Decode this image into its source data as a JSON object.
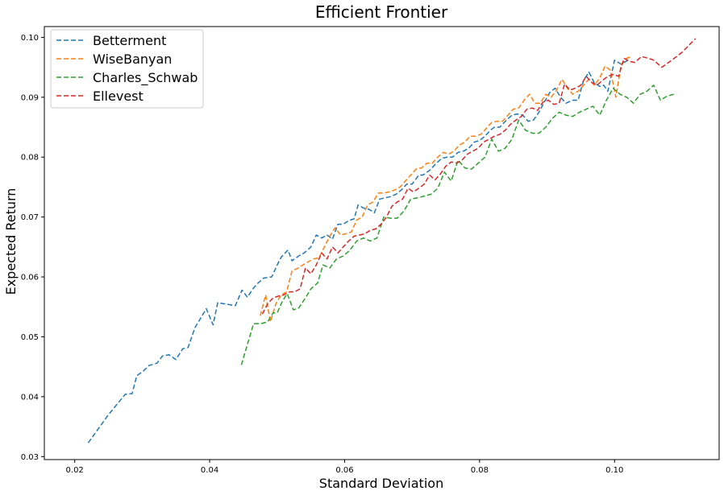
{
  "chart_data": {
    "type": "line",
    "title": "Efficient Frontier",
    "xlabel": "Standard Deviation",
    "ylabel": "Expected Return",
    "xlim": [
      0.0155,
      0.1155
    ],
    "ylim": [
      0.0295,
      0.1018
    ],
    "xticks": [
      0.02,
      0.04,
      0.06,
      0.08,
      0.1
    ],
    "xtick_labels": [
      "0.02",
      "0.04",
      "0.06",
      "0.08",
      "0.10"
    ],
    "yticks": [
      0.03,
      0.04,
      0.05,
      0.06,
      0.07,
      0.08,
      0.09,
      0.1
    ],
    "ytick_labels": [
      "0.03",
      "0.04",
      "0.05",
      "0.06",
      "0.07",
      "0.08",
      "0.09",
      "0.10"
    ],
    "grid": false,
    "line_style": "dashed",
    "legend_position": "upper-left",
    "series": [
      {
        "name": "Betterment",
        "color": "#1f77b4",
        "x": [
          0.022,
          0.025,
          0.0275,
          0.0285,
          0.0292,
          0.0302,
          0.031,
          0.0322,
          0.033,
          0.034,
          0.035,
          0.036,
          0.0368,
          0.0378,
          0.0385,
          0.0395,
          0.0405,
          0.0412,
          0.0422,
          0.0438,
          0.0448,
          0.0456,
          0.0464,
          0.0472,
          0.048,
          0.0492,
          0.05,
          0.0506,
          0.0516,
          0.0522,
          0.0532,
          0.054,
          0.055,
          0.0558,
          0.0566,
          0.0574,
          0.0582,
          0.059,
          0.0598,
          0.0606,
          0.0614,
          0.062,
          0.0628,
          0.0636,
          0.0644,
          0.0652,
          0.066,
          0.0668,
          0.0676,
          0.0684,
          0.0692,
          0.07,
          0.071,
          0.0716,
          0.0726,
          0.0736,
          0.0744,
          0.0752,
          0.076,
          0.0768,
          0.0776,
          0.0784,
          0.0792,
          0.08,
          0.0808,
          0.0816,
          0.0822,
          0.083,
          0.084,
          0.0848,
          0.0856,
          0.0864,
          0.0872,
          0.088,
          0.0888,
          0.0896,
          0.0904,
          0.0912,
          0.092,
          0.0928,
          0.0938,
          0.0946,
          0.0954,
          0.0962,
          0.097,
          0.0978,
          0.0984,
          0.099,
          0.1,
          0.101,
          0.102
        ],
        "values": [
          0.0323,
          0.037,
          0.0404,
          0.0405,
          0.0435,
          0.0443,
          0.0452,
          0.0456,
          0.0468,
          0.047,
          0.0462,
          0.048,
          0.0482,
          0.0515,
          0.0528,
          0.0547,
          0.052,
          0.0557,
          0.0555,
          0.0552,
          0.0578,
          0.0566,
          0.058,
          0.059,
          0.0598,
          0.06,
          0.062,
          0.0633,
          0.0645,
          0.0627,
          0.0635,
          0.064,
          0.065,
          0.067,
          0.0665,
          0.067,
          0.0663,
          0.0688,
          0.0688,
          0.0694,
          0.0697,
          0.072,
          0.0715,
          0.0713,
          0.0707,
          0.073,
          0.0732,
          0.0734,
          0.0738,
          0.0745,
          0.0755,
          0.0755,
          0.077,
          0.077,
          0.0778,
          0.079,
          0.0798,
          0.08,
          0.08,
          0.0808,
          0.081,
          0.0815,
          0.0825,
          0.0828,
          0.0835,
          0.0845,
          0.085,
          0.085,
          0.0862,
          0.087,
          0.0872,
          0.087,
          0.086,
          0.0862,
          0.0875,
          0.0892,
          0.0908,
          0.0915,
          0.09,
          0.089,
          0.0895,
          0.0895,
          0.0928,
          0.0942,
          0.0924,
          0.0918,
          0.092,
          0.091,
          0.0962,
          0.0955,
          0.0962
        ]
      },
      {
        "name": "WiseBanyan",
        "color": "#ff7f0e",
        "x": [
          0.0475,
          0.0483,
          0.049,
          0.0498,
          0.0506,
          0.0514,
          0.0522,
          0.053,
          0.0538,
          0.0546,
          0.0554,
          0.0562,
          0.057,
          0.0578,
          0.0586,
          0.0594,
          0.0602,
          0.061,
          0.0618,
          0.0626,
          0.0634,
          0.0642,
          0.065,
          0.0658,
          0.0666,
          0.0674,
          0.0682,
          0.069,
          0.0698,
          0.0706,
          0.0714,
          0.0722,
          0.073,
          0.0738,
          0.0746,
          0.0754,
          0.0762,
          0.077,
          0.0778,
          0.0786,
          0.0794,
          0.0802,
          0.081,
          0.0818,
          0.0826,
          0.0834,
          0.0842,
          0.085,
          0.0858,
          0.0866,
          0.0874,
          0.0882,
          0.089,
          0.0898,
          0.0906,
          0.0914,
          0.0922,
          0.093,
          0.0938,
          0.0946,
          0.0954,
          0.0962,
          0.097,
          0.0978,
          0.0986,
          0.0994,
          0.1002,
          0.101,
          0.1018,
          0.1026
        ],
        "values": [
          0.0535,
          0.057,
          0.0525,
          0.0555,
          0.057,
          0.0575,
          0.061,
          0.0614,
          0.062,
          0.0625,
          0.063,
          0.0632,
          0.065,
          0.0668,
          0.0682,
          0.067,
          0.0672,
          0.0675,
          0.0695,
          0.07,
          0.072,
          0.0725,
          0.074,
          0.074,
          0.0742,
          0.0745,
          0.075,
          0.076,
          0.077,
          0.078,
          0.0782,
          0.079,
          0.079,
          0.08,
          0.0808,
          0.0805,
          0.081,
          0.082,
          0.0825,
          0.0835,
          0.0835,
          0.0838,
          0.0848,
          0.0858,
          0.086,
          0.086,
          0.087,
          0.088,
          0.0882,
          0.0895,
          0.0905,
          0.089,
          0.089,
          0.0905,
          0.09,
          0.0912,
          0.093,
          0.0915,
          0.0905,
          0.091,
          0.092,
          0.093,
          0.092,
          0.0932,
          0.0952,
          0.0945,
          0.09,
          0.0955,
          0.0965,
          0.0968
        ]
      },
      {
        "name": "Charles_Schwab",
        "color": "#2ca02c",
        "x": [
          0.0447,
          0.0465,
          0.0476,
          0.0486,
          0.0494,
          0.05,
          0.0508,
          0.0515,
          0.0524,
          0.0532,
          0.0542,
          0.055,
          0.056,
          0.0568,
          0.0578,
          0.0588,
          0.0598,
          0.0608,
          0.0618,
          0.0628,
          0.0638,
          0.0648,
          0.0658,
          0.0668,
          0.0678,
          0.0688,
          0.0698,
          0.0708,
          0.0718,
          0.0728,
          0.0738,
          0.0748,
          0.0758,
          0.0768,
          0.0778,
          0.0788,
          0.0798,
          0.0808,
          0.0818,
          0.0828,
          0.0838,
          0.0848,
          0.0858,
          0.0868,
          0.0878,
          0.0888,
          0.0898,
          0.0908,
          0.0918,
          0.0928,
          0.0938,
          0.0948,
          0.0958,
          0.0968,
          0.0978,
          0.0988,
          0.0998,
          0.1008,
          0.1018,
          0.1028,
          0.1038,
          0.1048,
          0.1058,
          0.1068,
          0.1078,
          0.1088
        ],
        "values": [
          0.0453,
          0.0522,
          0.0522,
          0.0525,
          0.054,
          0.054,
          0.056,
          0.0572,
          0.0545,
          0.0548,
          0.0565,
          0.058,
          0.059,
          0.062,
          0.0615,
          0.063,
          0.0635,
          0.0645,
          0.066,
          0.0665,
          0.066,
          0.0665,
          0.07,
          0.0698,
          0.0698,
          0.071,
          0.073,
          0.0732,
          0.0735,
          0.0738,
          0.0748,
          0.0775,
          0.076,
          0.0795,
          0.0782,
          0.078,
          0.079,
          0.08,
          0.083,
          0.081,
          0.0815,
          0.083,
          0.0862,
          0.0845,
          0.084,
          0.084,
          0.085,
          0.0865,
          0.0875,
          0.087,
          0.0868,
          0.0875,
          0.088,
          0.0885,
          0.087,
          0.0895,
          0.0915,
          0.0905,
          0.09,
          0.089,
          0.0905,
          0.091,
          0.092,
          0.0895,
          0.0902,
          0.0905
        ]
      },
      {
        "name": "Ellevest",
        "color": "#d62728",
        "x": [
          0.0478,
          0.0486,
          0.0494,
          0.0502,
          0.051,
          0.0518,
          0.0526,
          0.0534,
          0.0542,
          0.055,
          0.0558,
          0.0566,
          0.0574,
          0.0582,
          0.059,
          0.0598,
          0.0606,
          0.0614,
          0.0622,
          0.063,
          0.0638,
          0.0646,
          0.0654,
          0.0662,
          0.067,
          0.0678,
          0.0686,
          0.0694,
          0.0702,
          0.071,
          0.0718,
          0.0726,
          0.0734,
          0.0742,
          0.075,
          0.0758,
          0.0766,
          0.0774,
          0.0782,
          0.079,
          0.0798,
          0.0806,
          0.0814,
          0.0822,
          0.083,
          0.0838,
          0.0846,
          0.0854,
          0.0862,
          0.087,
          0.0878,
          0.0886,
          0.0894,
          0.0902,
          0.091,
          0.0918,
          0.0926,
          0.0934,
          0.0942,
          0.095,
          0.0958,
          0.0966,
          0.0974,
          0.0982,
          0.099,
          0.0998,
          0.1006,
          0.1014,
          0.1022,
          0.103,
          0.104,
          0.105,
          0.1058,
          0.107,
          0.1085,
          0.11,
          0.112
        ],
        "values": [
          0.0538,
          0.0555,
          0.0565,
          0.0568,
          0.057,
          0.0575,
          0.0575,
          0.058,
          0.0615,
          0.0605,
          0.062,
          0.064,
          0.063,
          0.065,
          0.064,
          0.065,
          0.066,
          0.0668,
          0.067,
          0.0672,
          0.0678,
          0.068,
          0.0688,
          0.07,
          0.0718,
          0.0725,
          0.073,
          0.0748,
          0.0742,
          0.0748,
          0.0755,
          0.077,
          0.0762,
          0.0772,
          0.0785,
          0.0792,
          0.079,
          0.0795,
          0.0805,
          0.081,
          0.0815,
          0.0825,
          0.083,
          0.0835,
          0.0838,
          0.0845,
          0.0855,
          0.0862,
          0.0868,
          0.088,
          0.0882,
          0.0878,
          0.0892,
          0.0895,
          0.0888,
          0.089,
          0.0922,
          0.0912,
          0.0915,
          0.092,
          0.0935,
          0.0925,
          0.092,
          0.0928,
          0.0935,
          0.0938,
          0.0935,
          0.0965,
          0.096,
          0.0958,
          0.0968,
          0.0965,
          0.0962,
          0.095,
          0.0962,
          0.0975,
          0.0998
        ]
      }
    ]
  }
}
